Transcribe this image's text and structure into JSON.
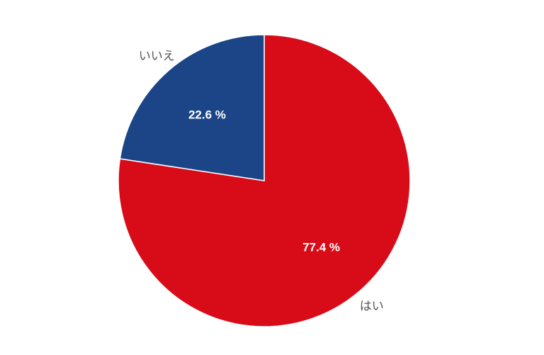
{
  "chart_data": {
    "type": "pie",
    "categories": [
      "はい",
      "いいえ"
    ],
    "values": [
      77.4,
      22.6
    ],
    "data_labels": [
      "77.4 %",
      "22.6 %"
    ],
    "colors": [
      "#d80c18",
      "#1c4587"
    ],
    "start": "top",
    "direction": "clockwise"
  }
}
